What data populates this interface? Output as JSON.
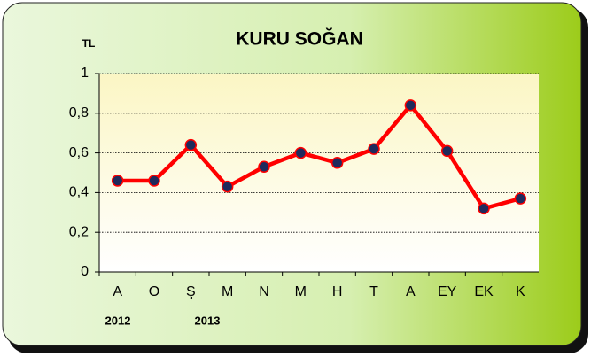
{
  "chart_data": {
    "type": "line",
    "title": "KURU SOĞAN",
    "y_label": "TL",
    "categories": [
      "A",
      "O",
      "Ş",
      "M",
      "N",
      "M",
      "H",
      "T",
      "A",
      "EY",
      "EK",
      "K"
    ],
    "series": [
      {
        "name": "KURU SOĞAN",
        "color": "#ff0000",
        "marker_color": "#1f2a5c",
        "values": [
          0.46,
          0.46,
          0.64,
          0.43,
          0.53,
          0.6,
          0.55,
          0.62,
          0.84,
          0.61,
          0.32,
          0.37
        ]
      }
    ],
    "annotations": [
      "2012",
      "2013"
    ],
    "ylim": [
      0,
      1
    ],
    "yticks": [
      0,
      {
        "value": 0.2,
        "label": "0,2"
      },
      {
        "value": 0.4,
        "label": "0,4"
      },
      {
        "value": 0.6,
        "label": "0,6"
      },
      {
        "value": 0.8,
        "label": "0,8"
      },
      1
    ],
    "grid": true
  }
}
